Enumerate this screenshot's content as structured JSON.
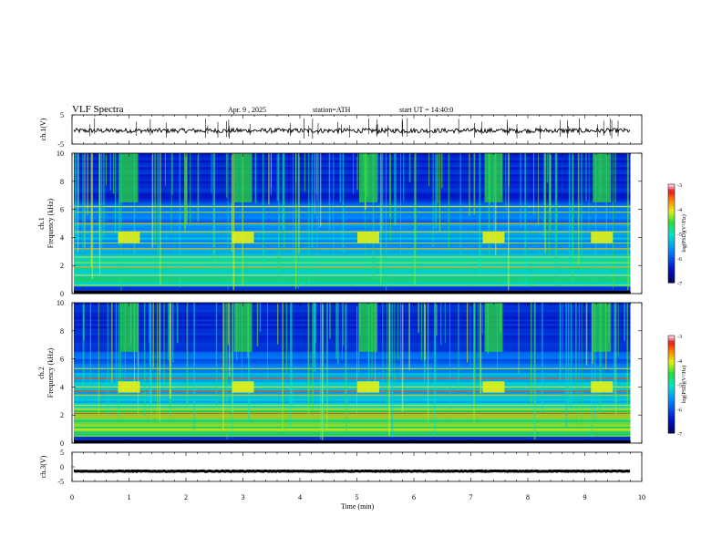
{
  "header": {
    "title": "VLF Spectra",
    "date": "Apr. 9 , 2025",
    "station": "station=ATH",
    "start_time": "start UT = 14:40:0"
  },
  "chart_data": [
    {
      "type": "line",
      "panel": "ch1-waveform",
      "ylabel": "ch.1(V)",
      "ylim": [
        -5,
        5
      ],
      "yticks": [
        "5",
        "-5"
      ],
      "baseline": -0.4,
      "color": "#000000"
    },
    {
      "type": "heatmap",
      "panel": "ch1-spectrogram",
      "ylabel_top": "ch.1",
      "ylabel": "Frequency (kHz)",
      "ylim": [
        0,
        10
      ],
      "yticks": [
        "10",
        "8",
        "6",
        "4",
        "2",
        "0"
      ],
      "x": [
        0,
        9.8
      ],
      "bright_bursts_min": [
        1.0,
        3.0,
        5.2,
        7.4,
        9.3
      ],
      "colorbar": {
        "label": "log(PSD)(V²/Hz)",
        "range": [
          -7,
          -3
        ],
        "ticks": [
          "-3",
          "-4",
          "-5",
          "-6",
          "-7"
        ]
      }
    },
    {
      "type": "heatmap",
      "panel": "ch2-spectrogram",
      "ylabel_top": "ch.2",
      "ylabel": "Frequency (kHz)",
      "ylim": [
        0,
        10
      ],
      "yticks": [
        "10",
        "8",
        "6",
        "4",
        "2",
        "0"
      ],
      "x": [
        0,
        9.8
      ],
      "bright_bursts_min": [
        1.0,
        3.0,
        5.2,
        7.4,
        9.3
      ],
      "colorbar": {
        "label": "log(PSD)(V²/Hz)",
        "range": [
          -7,
          -3
        ],
        "ticks": [
          "-3",
          "-4",
          "-5",
          "-6",
          "-7"
        ]
      }
    },
    {
      "type": "line",
      "panel": "ch3-waveform",
      "ylabel": "ch.3(V)",
      "ylim": [
        -5,
        5
      ],
      "yticks": [
        "5",
        "0",
        "-5"
      ],
      "baseline": -1.5,
      "color": "#000000"
    }
  ],
  "x_axis": {
    "label": "Time (min)",
    "ticks": [
      "0",
      "1",
      "2",
      "3",
      "4",
      "5",
      "6",
      "7",
      "8",
      "9",
      "10"
    ],
    "range": [
      0,
      10
    ]
  }
}
